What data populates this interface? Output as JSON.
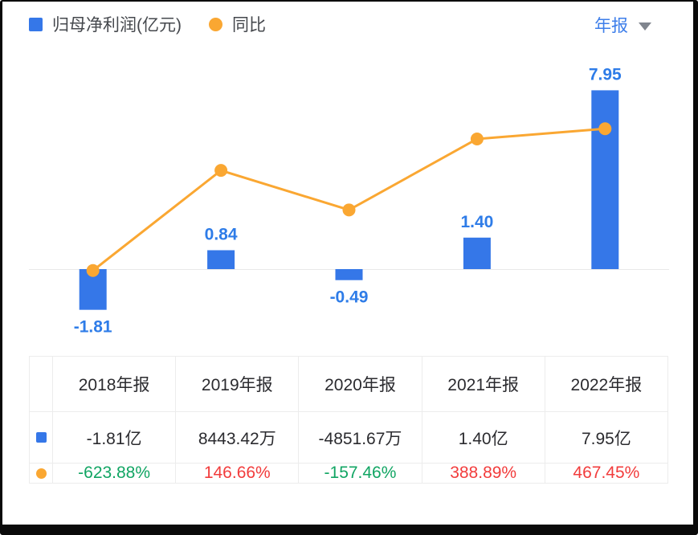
{
  "legend": {
    "items": [
      {
        "label": "归母净利润(亿元)",
        "marker": "square"
      },
      {
        "label": "同比",
        "marker": "dot"
      }
    ]
  },
  "period_selector": {
    "selected": "年报"
  },
  "colors": {
    "bar": "#3577E8",
    "line": "#FAA732",
    "label_blue": "#2E7CE8",
    "link_blue": "#3D7EEA",
    "up_red": "#F23C3C",
    "down_green": "#11A563",
    "grid": "#ECECEC",
    "text_dark": "#2B2B2F",
    "legend_text": "#45484D",
    "caret_gray": "#80858E",
    "baseline": "#E9E9E9"
  },
  "chart_data": {
    "type": "bar+line",
    "categories": [
      "2018年报",
      "2019年报",
      "2020年报",
      "2021年报",
      "2022年报"
    ],
    "series": [
      {
        "name": "归母净利润(亿元)",
        "type": "bar",
        "values": [
          -1.81,
          0.84,
          -0.49,
          1.4,
          7.95
        ],
        "labels": [
          "-1.81",
          "0.84",
          "-0.49",
          "1.40",
          "7.95"
        ]
      },
      {
        "name": "同比",
        "type": "line",
        "unit": "%",
        "values": [
          -623.88,
          146.66,
          -157.46,
          388.89,
          467.45
        ]
      }
    ],
    "line_axis": {
      "min": -650,
      "max": 500
    },
    "grid": "off",
    "legend_position": "top-left",
    "baseline": 0
  },
  "table": {
    "headers": [
      "2018年报",
      "2019年报",
      "2020年报",
      "2021年报",
      "2022年报"
    ],
    "rows": [
      {
        "name": "net-profit-row",
        "marker": "square",
        "cells": [
          {
            "text": "-1.81亿",
            "tone": "dark"
          },
          {
            "text": "8443.42万",
            "tone": "dark"
          },
          {
            "text": "-4851.67万",
            "tone": "dark"
          },
          {
            "text": "1.40亿",
            "tone": "dark"
          },
          {
            "text": "7.95亿",
            "tone": "dark"
          }
        ]
      },
      {
        "name": "yoy-row",
        "marker": "dot",
        "cells": [
          {
            "text": "-623.88%",
            "tone": "down"
          },
          {
            "text": "146.66%",
            "tone": "up"
          },
          {
            "text": "-157.46%",
            "tone": "down"
          },
          {
            "text": "388.89%",
            "tone": "up"
          },
          {
            "text": "467.45%",
            "tone": "up"
          }
        ]
      }
    ]
  }
}
